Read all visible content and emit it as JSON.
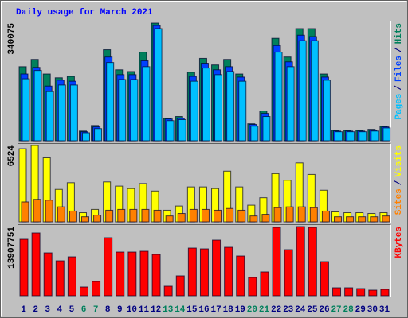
{
  "chart_data": [
    {
      "type": "bar",
      "title": "Daily usage for March 2021",
      "separator": "/",
      "ylim": [
        0,
        340075
      ],
      "yticks": [
        340075
      ],
      "series": [
        {
          "name": "Hits",
          "color": "#00805c",
          "values": [
            214000,
            235000,
            193000,
            182000,
            186000,
            28000,
            44000,
            263000,
            205000,
            200000,
            256000,
            340075,
            65000,
            70000,
            198000,
            238000,
            219000,
            235000,
            193000,
            49000,
            86000,
            296000,
            242000,
            324000,
            324000,
            193000,
            30000,
            30000,
            30000,
            33000,
            42000
          ]
        },
        {
          "name": "Files",
          "color": "#0040ff",
          "values": [
            193000,
            212000,
            158000,
            175000,
            172000,
            26000,
            40000,
            242000,
            191000,
            191000,
            231000,
            333000,
            63000,
            65000,
            186000,
            224000,
            205000,
            214000,
            184000,
            47000,
            79000,
            275000,
            228000,
            305000,
            301000,
            184000,
            28000,
            28000,
            28000,
            30000,
            40000
          ]
        },
        {
          "name": "Pages",
          "color": "#00c0ff",
          "values": [
            179000,
            203000,
            142000,
            161000,
            161000,
            23000,
            35000,
            226000,
            177000,
            177000,
            214000,
            324000,
            58000,
            61000,
            172000,
            210000,
            191000,
            200000,
            172000,
            42000,
            70000,
            256000,
            214000,
            289000,
            289000,
            175000,
            26000,
            26000,
            26000,
            28000,
            37000
          ]
        }
      ]
    },
    {
      "type": "bar",
      "separator": "/",
      "ylim": [
        0,
        6524
      ],
      "yticks": [
        6524
      ],
      "series": [
        {
          "name": "Visits",
          "color": "#ffff00",
          "values": [
            6248,
            6524,
            5470,
            2770,
            3340,
            780,
            1060,
            3410,
            3050,
            2840,
            3270,
            2630,
            990,
            1350,
            2980,
            2980,
            2840,
            4330,
            2980,
            1420,
            2060,
            4120,
            3550,
            5040,
            4050,
            2700,
            850,
            780,
            780,
            710,
            780
          ]
        },
        {
          "name": "Sites",
          "color": "#ff8000",
          "values": [
            1700,
            1920,
            1850,
            1280,
            920,
            430,
            570,
            990,
            1060,
            1060,
            1060,
            990,
            500,
            710,
            1060,
            1060,
            990,
            1140,
            990,
            500,
            640,
            1210,
            1280,
            1280,
            1210,
            920,
            430,
            430,
            430,
            430,
            500
          ]
        }
      ]
    },
    {
      "type": "bar",
      "ylim": [
        0,
        13907751
      ],
      "yticks": [
        13907751
      ],
      "categories": [
        "1",
        "2",
        "3",
        "4",
        "5",
        "6",
        "7",
        "8",
        "9",
        "10",
        "11",
        "12",
        "13",
        "14",
        "15",
        "16",
        "17",
        "18",
        "19",
        "20",
        "21",
        "22",
        "23",
        "24",
        "25",
        "26",
        "27",
        "28",
        "29",
        "30",
        "31"
      ],
      "category_colors": [
        "#000080",
        "#000080",
        "#000080",
        "#000080",
        "#000080",
        "#00805c",
        "#00805c",
        "#000080",
        "#000080",
        "#000080",
        "#000080",
        "#000080",
        "#00805c",
        "#00805c",
        "#000080",
        "#000080",
        "#000080",
        "#000080",
        "#000080",
        "#00805c",
        "#00805c",
        "#000080",
        "#000080",
        "#000080",
        "#000080",
        "#000080",
        "#00805c",
        "#00805c",
        "#000080",
        "#000080",
        "#000080"
      ],
      "series": [
        {
          "name": "KBytes",
          "color": "#ff0000",
          "values": [
            11350000,
            12630000,
            8630000,
            7030000,
            7830000,
            1760000,
            2880000,
            11670000,
            8790000,
            8790000,
            8950000,
            8310000,
            1920000,
            4000000,
            9590000,
            9430000,
            11190000,
            9750000,
            7990000,
            3680000,
            4800000,
            13750000,
            9270000,
            13907751,
            13750000,
            6870000,
            1600000,
            1600000,
            1440000,
            1120000,
            1280000
          ]
        }
      ]
    }
  ]
}
